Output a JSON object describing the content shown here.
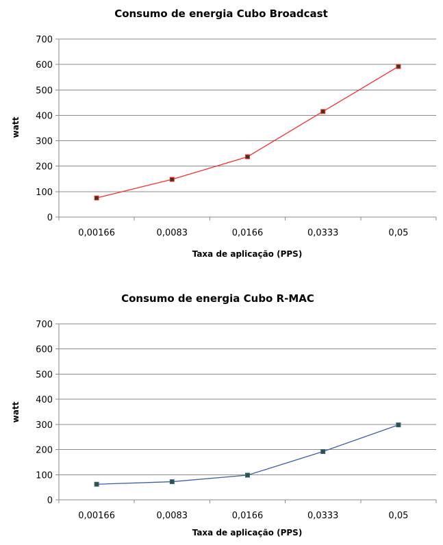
{
  "chart_data": [
    {
      "type": "line",
      "title": "Consumo de energia Cubo Broadcast",
      "xlabel": "Taxa de aplicação (PPS)",
      "ylabel": "watt",
      "categories": [
        "0,00166",
        "0,0083",
        "0,0166",
        "0,0333",
        "0,05"
      ],
      "series": [
        {
          "values": [
            75,
            148,
            237,
            415,
            592
          ],
          "color": "#ff2a2a"
        }
      ],
      "ylim": [
        0,
        700
      ],
      "yticks": [
        0,
        100,
        200,
        300,
        400,
        500,
        600,
        700
      ],
      "ytick_labels": [
        "0",
        "100",
        "200",
        "300",
        "400",
        "500",
        "600",
        "700"
      ],
      "grid": true,
      "legend": false,
      "marker_color": "#3a3a1a"
    },
    {
      "type": "line",
      "title": "Consumo de energia  Cubo R-MAC",
      "xlabel": "Taxa de aplicação (PPS)",
      "ylabel": "watt",
      "categories": [
        "0,00166",
        "0,0083",
        "0,0166",
        "0,0333",
        "0,05"
      ],
      "series": [
        {
          "values": [
            62,
            72,
            98,
            192,
            298
          ],
          "color": "#3b5ea8"
        }
      ],
      "ylim": [
        0,
        700
      ],
      "yticks": [
        0,
        100,
        200,
        300,
        400,
        500,
        600,
        700
      ],
      "ytick_labels": [
        "0",
        "100",
        "200",
        "300",
        "400",
        "500",
        "600",
        "700"
      ],
      "grid": true,
      "legend": false,
      "marker_color": "#2e5a1e"
    }
  ]
}
